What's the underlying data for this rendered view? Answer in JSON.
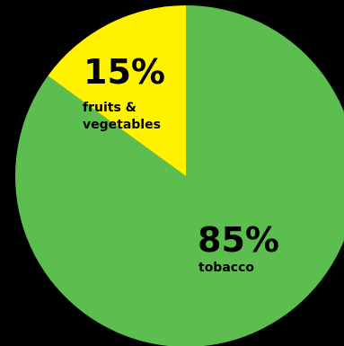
{
  "chart_data": {
    "type": "pie",
    "slices": [
      {
        "label": "tobacco",
        "label_lines": [
          "tobacco"
        ],
        "value": 85,
        "value_label": "85%",
        "color": "#5cbe4f"
      },
      {
        "label": "fruits & vegetables",
        "label_lines": [
          "fruits &",
          "vegetables"
        ],
        "value": 15,
        "value_label": "15%",
        "color": "#fff200"
      }
    ],
    "start": "12 o'clock",
    "direction": "clockwise",
    "background": "#000000",
    "label_color": "#000000"
  }
}
